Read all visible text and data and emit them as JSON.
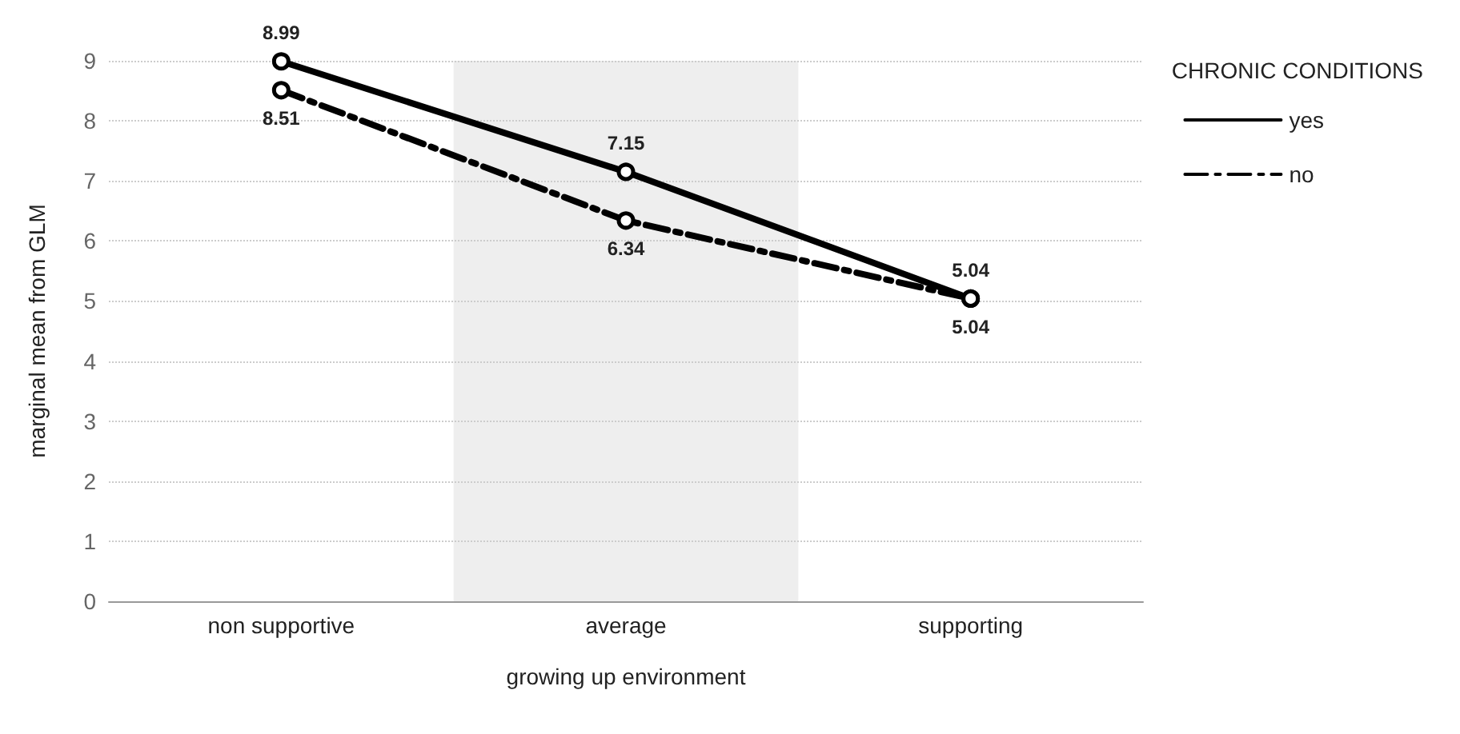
{
  "chart_data": {
    "type": "line",
    "xlabel": "growing up environment",
    "ylabel": "marginal mean from GLM",
    "legend_title": "CHRONIC CONDITIONS",
    "categories": [
      "non supportive",
      "average",
      "supporting"
    ],
    "series": [
      {
        "name": "yes",
        "color": "#000000",
        "values": [
          8.99,
          7.15,
          5.04
        ],
        "line_style": "solid"
      },
      {
        "name": "no",
        "color": "#000000",
        "values": [
          8.51,
          6.34,
          5.04
        ],
        "line_style": "dashed"
      }
    ],
    "ylim": [
      0,
      9
    ],
    "yticks": [
      0,
      1,
      2,
      3,
      4,
      5,
      6,
      7,
      8,
      9
    ],
    "grid": "y",
    "legend": "right",
    "marker": "circle",
    "data_labels": true,
    "bands": [
      {
        "axis": "x",
        "from": "average",
        "to": "average",
        "color": "#eeeeee"
      }
    ]
  }
}
